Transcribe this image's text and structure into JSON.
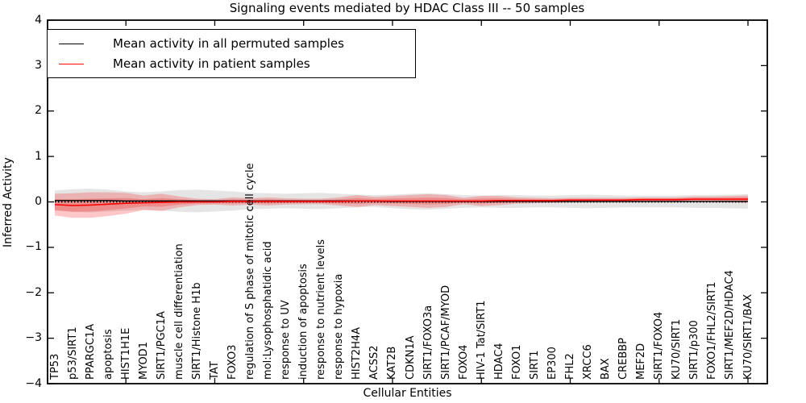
{
  "chart_data": {
    "type": "line",
    "title": "Signaling events mediated by HDAC Class III -- 50 samples",
    "xlabel": "Cellular Entities",
    "ylabel": "Inferred Activity",
    "ylim": [
      -4,
      4
    ],
    "yticks": [
      4,
      3,
      2,
      1,
      0,
      -1,
      -2,
      -3,
      -4
    ],
    "x_major_tick_indices": [
      4,
      9,
      14,
      19,
      24,
      29,
      34,
      39
    ],
    "grid": false,
    "legend_position": "upper left",
    "categories": [
      "TP53",
      "p53/SIRT1",
      "PPARGC1A",
      "apoptosis",
      "HIST1H1E",
      "MYOD1",
      "SIRT1/PGC1A",
      "muscle cell differentiation",
      "SIRT1/Histone H1b",
      "TAT",
      "FOXO3",
      "regulation of S phase of mitotic cell cycle",
      "mol:Lysophosphatidic acid",
      "response to UV",
      "induction of apoptosis",
      "response to nutrient levels",
      "response to hypoxia",
      "HIST2H4A",
      "ACSS2",
      "KAT2B",
      "CDKN1A",
      "SIRT1/FOXO3a",
      "SIRT1/PCAF/MYOD",
      "FOXO4",
      "HIV-1 Tat/SIRT1",
      "HDAC4",
      "FOXO1",
      "SIRT1",
      "EP300",
      "FHL2",
      "XRCC6",
      "BAX",
      "CREBBP",
      "MEF2D",
      "SIRT1/FOXO4",
      "KU70/SIRT1",
      "SIRT1/p300",
      "FOXO1/FHL2/SIRT1",
      "SIRT1/MEF2D/HDAC4",
      "KU70/SIRT1/BAX"
    ],
    "series": [
      {
        "name": "Mean activity in all permuted samples",
        "line_color": "#000000",
        "band_color": "rgba(0,0,0,0.10)",
        "mean": [
          0.03,
          0.03,
          0.03,
          0.03,
          0.02,
          0.02,
          0.02,
          0.02,
          0.02,
          0.02,
          0.02,
          0.02,
          0.02,
          0.02,
          0.02,
          0.02,
          0.02,
          0.02,
          0.02,
          0.01,
          0.01,
          0.01,
          0.01,
          0.01,
          0.01,
          0.01,
          0.01,
          0.01,
          0.01,
          0.01,
          0.01,
          0.01,
          0.01,
          0.01,
          0.01,
          0.01,
          0.01,
          0.01,
          0.01,
          0.01
        ],
        "std": [
          0.22,
          0.25,
          0.26,
          0.24,
          0.21,
          0.19,
          0.21,
          0.24,
          0.25,
          0.23,
          0.21,
          0.18,
          0.17,
          0.16,
          0.17,
          0.18,
          0.16,
          0.14,
          0.13,
          0.15,
          0.17,
          0.18,
          0.16,
          0.14,
          0.13,
          0.14,
          0.14,
          0.13,
          0.13,
          0.14,
          0.15,
          0.14,
          0.13,
          0.13,
          0.13,
          0.13,
          0.14,
          0.14,
          0.15,
          0.16
        ]
      },
      {
        "name": "Mean activity in patient samples",
        "line_color": "#ff0000",
        "band_color": "rgba(255,0,0,0.22)",
        "mean": [
          -0.06,
          -0.08,
          -0.07,
          -0.05,
          -0.03,
          -0.02,
          -0.01,
          0.0,
          0.0,
          0.0,
          0.01,
          0.01,
          0.01,
          0.01,
          0.01,
          0.01,
          0.01,
          0.02,
          0.02,
          0.02,
          0.02,
          0.02,
          0.02,
          0.02,
          0.02,
          0.03,
          0.03,
          0.03,
          0.03,
          0.04,
          0.04,
          0.04,
          0.04,
          0.05,
          0.05,
          0.05,
          0.06,
          0.06,
          0.06,
          0.06
        ],
        "std": [
          0.24,
          0.27,
          0.28,
          0.26,
          0.23,
          0.16,
          0.19,
          0.12,
          0.07,
          0.06,
          0.09,
          0.07,
          0.09,
          0.07,
          0.06,
          0.06,
          0.09,
          0.13,
          0.09,
          0.11,
          0.13,
          0.15,
          0.13,
          0.07,
          0.11,
          0.1,
          0.07,
          0.06,
          0.05,
          0.05,
          0.05,
          0.05,
          0.05,
          0.05,
          0.05,
          0.05,
          0.06,
          0.06,
          0.07,
          0.08
        ]
      }
    ],
    "zero_line": {
      "style": "dotted",
      "color": "#000000",
      "y": 0
    }
  }
}
